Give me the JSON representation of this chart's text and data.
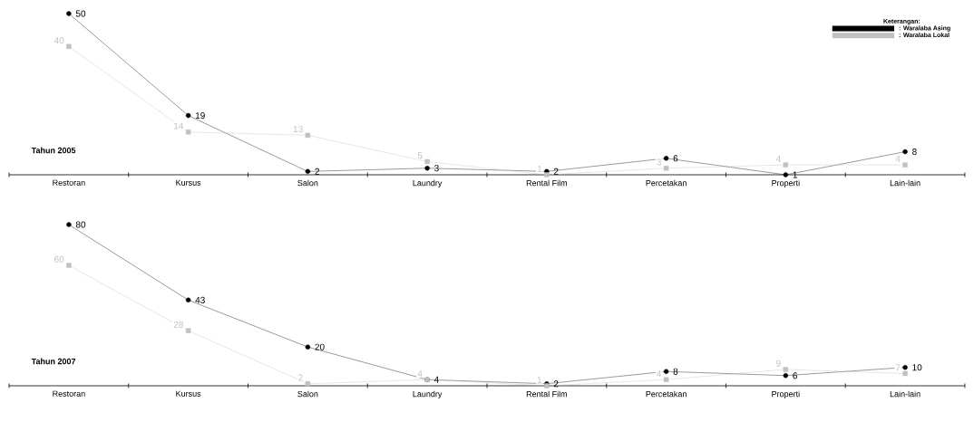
{
  "chart_data": [
    {
      "type": "line",
      "title": "Tahun 2005",
      "legend_title": "Keterangan:",
      "legend": "top right",
      "data_labels": true,
      "grid": false,
      "categories": [
        "Restoran",
        "Kursus",
        "Salon",
        "Laundry",
        "Rental Film",
        "Percetakan",
        "Properti",
        "Lain-lain"
      ],
      "series": [
        {
          "name": ": Waralaba Asing",
          "color": "#000000",
          "marker": "circle",
          "values": [
            50,
            19,
            2,
            3,
            2,
            6,
            1,
            8
          ]
        },
        {
          "name": ": Waralaba Lokal",
          "color": "#c0c0c0",
          "marker": "square",
          "values": [
            40,
            14,
            13,
            5,
            1,
            3,
            4,
            4
          ]
        }
      ]
    },
    {
      "type": "line",
      "title": "Tahun 2007",
      "legend": false,
      "data_labels": true,
      "grid": false,
      "categories": [
        "Restoran",
        "Kursus",
        "Salon",
        "Laundry",
        "Rental Film",
        "Percetakan",
        "Properti",
        "Lain-lain"
      ],
      "series": [
        {
          "color": "#000000",
          "marker": "circle",
          "values": [
            80,
            43,
            20,
            4,
            2,
            8,
            6,
            10
          ]
        },
        {
          "color": "#c0c0c0",
          "marker": "square",
          "values": [
            60,
            28,
            2,
            4,
            1,
            4,
            9,
            7
          ]
        }
      ]
    }
  ]
}
